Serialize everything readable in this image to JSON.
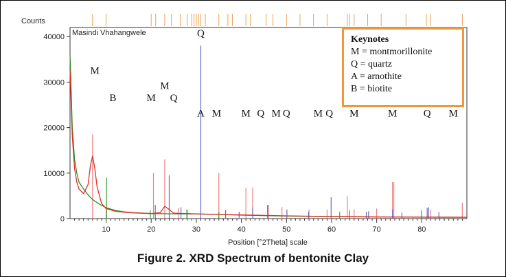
{
  "figure": {
    "caption": "Figure 2. XRD Spectrum of bentonite Clay"
  },
  "keynotes": {
    "title": "Keynotes",
    "items": [
      "M = montmorillonite",
      "Q = quartz",
      "A = arnothite",
      "B = biotite"
    ]
  },
  "chart_data": {
    "type": "line",
    "ylabel": "Counts",
    "xlabel": "Position [°2Theta] scale",
    "sample_label": "Masindi Vhahangwele",
    "xlim": [
      2,
      90
    ],
    "ylim": [
      0,
      42000
    ],
    "x_ticks": [
      10,
      20,
      30,
      40,
      50,
      60,
      70,
      80
    ],
    "y_ticks": [
      0,
      10000,
      20000,
      30000,
      40000
    ],
    "y_tick_labels": [
      "0",
      "10000",
      "20000",
      "30000",
      "40000"
    ],
    "series": [
      {
        "color": "#2e8b2e",
        "x": [
          2,
          2.5,
          3,
          3.5,
          4,
          5,
          6,
          7,
          8,
          9,
          10,
          12,
          14,
          16,
          20,
          25,
          30,
          35,
          40,
          50,
          60,
          70,
          80,
          90
        ],
        "y": [
          36000,
          20000,
          13000,
          10000,
          8000,
          6500,
          5200,
          4200,
          3500,
          2900,
          2400,
          1800,
          1500,
          1300,
          1100,
          1050,
          1000,
          900,
          750,
          550,
          420,
          350,
          300,
          280
        ]
      },
      {
        "color": "#e03020",
        "x": [
          2,
          2.5,
          3,
          3.5,
          4,
          5,
          6,
          6.5,
          7,
          7.5,
          8,
          9,
          10,
          12,
          14,
          16,
          20,
          22,
          23,
          24,
          25,
          30,
          35,
          40,
          50,
          60,
          70,
          80,
          90
        ],
        "y": [
          33000,
          18000,
          11000,
          8000,
          6500,
          5500,
          7500,
          11500,
          13800,
          11000,
          7000,
          3300,
          2200,
          1600,
          1400,
          1250,
          1100,
          1300,
          2700,
          2000,
          1200,
          1050,
          900,
          800,
          600,
          450,
          380,
          320,
          300
        ]
      }
    ],
    "reference_peaks": [
      {
        "color": "#f08080",
        "x": [
          7,
          10,
          20.5,
          23,
          26,
          28,
          35,
          41,
          42.5,
          46,
          49,
          55,
          59,
          63.5,
          65,
          70,
          73.5,
          73.8,
          82,
          89
        ],
        "y": [
          18500,
          2000,
          10000,
          13000,
          2300,
          2000,
          10000,
          6800,
          6800,
          3000,
          2500,
          2000,
          2000,
          5000,
          2000,
          2200,
          8000,
          8000,
          2000,
          3500
        ]
      },
      {
        "color": "#6666cc",
        "x": [
          20.9,
          24,
          26.6,
          31,
          36.5,
          39.5,
          42.5,
          45.8,
          50.1,
          54.9,
          59.9,
          64,
          67.7,
          68.2,
          73.5,
          75.6,
          79.9,
          81.2,
          81.5,
          83.8
        ],
        "y": [
          3000,
          9500,
          2500,
          38000,
          1800,
          1500,
          2500,
          3000,
          2000,
          1500,
          4700,
          1800,
          1500,
          1600,
          2000,
          1300,
          1800,
          2300,
          2500,
          1400
        ]
      },
      {
        "color": "#3aa03a",
        "x": [
          10.1,
          19.8,
          27.9,
          35,
          61.8
        ],
        "y": [
          9000,
          1800,
          2000,
          1500,
          1500
        ]
      }
    ],
    "top_tick_positions": [
      7,
      10,
      20,
      21,
      23,
      24.5,
      26.5,
      28,
      29,
      29.5,
      30,
      30.5,
      31,
      32,
      35,
      37,
      38,
      41,
      42,
      45.5,
      47,
      50,
      53,
      56,
      59,
      63.5,
      64,
      65,
      68,
      71,
      76.5,
      81,
      82,
      89
    ],
    "peak_labels": [
      {
        "text": "M",
        "x": 7.5,
        "y": 31800
      },
      {
        "text": "B",
        "x": 11.5,
        "y": 25800
      },
      {
        "text": "M",
        "x": 20,
        "y": 25800
      },
      {
        "text": "M",
        "x": 23,
        "y": 28500
      },
      {
        "text": "Q",
        "x": 25,
        "y": 25800
      },
      {
        "text": "Q",
        "x": 31,
        "y": 40000
      },
      {
        "text": "A",
        "x": 31,
        "y": 22400
      },
      {
        "text": "M",
        "x": 34.5,
        "y": 22400
      },
      {
        "text": "M",
        "x": 41,
        "y": 22400
      },
      {
        "text": "Q",
        "x": 44.3,
        "y": 22400
      },
      {
        "text": "M",
        "x": 47.7,
        "y": 22400
      },
      {
        "text": "Q",
        "x": 50,
        "y": 22400
      },
      {
        "text": "M",
        "x": 57,
        "y": 22400
      },
      {
        "text": "Q",
        "x": 59.5,
        "y": 22400
      },
      {
        "text": "M",
        "x": 65,
        "y": 22400
      },
      {
        "text": "M",
        "x": 73.5,
        "y": 22400
      },
      {
        "text": "Q",
        "x": 81.2,
        "y": 22400
      },
      {
        "text": "M",
        "x": 87,
        "y": 22400
      }
    ]
  }
}
